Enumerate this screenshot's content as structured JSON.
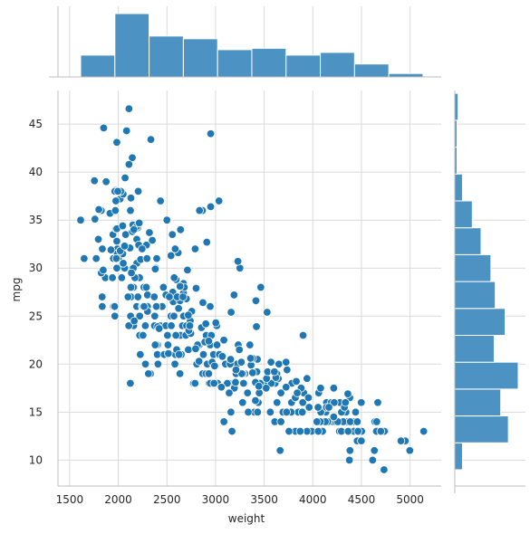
{
  "chart_data": {
    "type": "scatter",
    "variant": "jointplot with marginal histograms",
    "xlabel": "weight",
    "ylabel": "mpg",
    "xlim": [
      1380,
      5320
    ],
    "ylim": [
      7.3,
      48.5
    ],
    "x_ticks": [
      1500,
      2000,
      2500,
      3000,
      3500,
      4000,
      4500,
      5000
    ],
    "y_ticks": [
      10,
      15,
      20,
      25,
      30,
      35,
      40,
      45
    ],
    "grid": true,
    "colors": {
      "points": "#1f77b4",
      "point_edge": "#ffffff",
      "bars": "#4c92c3",
      "bar_edge": "#ffffff",
      "grid": "#d9d9d9",
      "spine": "#bcbcbc"
    },
    "x_marginal_histogram": {
      "bin_edges": [
        1613,
        1965,
        2317,
        2669,
        3021,
        3373,
        3725,
        4077,
        4429,
        4781,
        5133
      ],
      "counts": [
        32,
        93,
        60,
        56,
        40,
        42,
        32,
        36,
        19,
        5
      ]
    },
    "y_marginal_histogram": {
      "bin_edges": [
        9,
        11.8,
        14.6,
        17.4,
        20.2,
        23,
        25.8,
        28.6,
        31.4,
        34.2,
        37,
        39.8,
        42.6,
        45.4,
        48.2
      ],
      "counts": [
        7,
        49,
        42,
        58,
        36,
        46,
        37,
        33,
        24,
        16,
        7,
        2,
        2,
        3
      ]
    },
    "points": [
      [
        3504,
        18
      ],
      [
        3693,
        15
      ],
      [
        3436,
        18
      ],
      [
        3433,
        16
      ],
      [
        3449,
        17
      ],
      [
        4341,
        15
      ],
      [
        4354,
        14
      ],
      [
        4312,
        14
      ],
      [
        4425,
        14
      ],
      [
        3850,
        15
      ],
      [
        3563,
        15
      ],
      [
        3609,
        14
      ],
      [
        3761,
        15
      ],
      [
        3086,
        14
      ],
      [
        2372,
        24
      ],
      [
        2833,
        22
      ],
      [
        2774,
        18
      ],
      [
        2587,
        21
      ],
      [
        2130,
        27
      ],
      [
        1835,
        26
      ],
      [
        2672,
        25
      ],
      [
        2430,
        24
      ],
      [
        2375,
        25
      ],
      [
        2234,
        26
      ],
      [
        2648,
        21
      ],
      [
        4615,
        10
      ],
      [
        4376,
        10
      ],
      [
        4382,
        11
      ],
      [
        4732,
        9
      ],
      [
        2130,
        27
      ],
      [
        2264,
        28
      ],
      [
        2228,
        25
      ],
      [
        2634,
        19
      ],
      [
        3439,
        16
      ],
      [
        3329,
        17
      ],
      [
        3302,
        19
      ],
      [
        3288,
        18
      ],
      [
        4209,
        14
      ],
      [
        4464,
        14
      ],
      [
        4154,
        14
      ],
      [
        4096,
        14
      ],
      [
        4955,
        12
      ],
      [
        4746,
        13
      ],
      [
        5140,
        13
      ],
      [
        2962,
        18
      ],
      [
        2408,
        22
      ],
      [
        3282,
        19
      ],
      [
        3139,
        18
      ],
      [
        2220,
        23
      ],
      [
        2123,
        28
      ],
      [
        2074,
        30
      ],
      [
        2065,
        30
      ],
      [
        1773,
        31
      ],
      [
        1613,
        35
      ],
      [
        1834,
        27
      ],
      [
        1955,
        26
      ],
      [
        2278,
        24
      ],
      [
        2126,
        25
      ],
      [
        2254,
        23
      ],
      [
        2408,
        20
      ],
      [
        2226,
        21
      ],
      [
        4274,
        13
      ],
      [
        4385,
        14
      ],
      [
        4135,
        15
      ],
      [
        4129,
        14
      ],
      [
        3672,
        17
      ],
      [
        4633,
        11
      ],
      [
        4502,
        13
      ],
      [
        4456,
        12
      ],
      [
        4422,
        13
      ],
      [
        2330,
        19
      ],
      [
        3892,
        15
      ],
      [
        4098,
        13
      ],
      [
        4294,
        13
      ],
      [
        4077,
        14
      ],
      [
        2933,
        18
      ],
      [
        2511,
        22
      ],
      [
        2979,
        21
      ],
      [
        2189,
        26
      ],
      [
        2395,
        22
      ],
      [
        2288,
        28
      ],
      [
        2506,
        23
      ],
      [
        2164,
        28
      ],
      [
        2100,
        27
      ],
      [
        4100,
        13
      ],
      [
        3672,
        14
      ],
      [
        3988,
        13
      ],
      [
        4042,
        14
      ],
      [
        3777,
        15
      ],
      [
        4952,
        12
      ],
      [
        4464,
        13
      ],
      [
        4363,
        13
      ],
      [
        4237,
        14
      ],
      [
        4735,
        13
      ],
      [
        4951,
        12
      ],
      [
        3821,
        13
      ],
      [
        3121,
        18
      ],
      [
        3278,
        16
      ],
      [
        2945,
        18
      ],
      [
        3021,
        18
      ],
      [
        2904,
        23
      ],
      [
        1950,
        26
      ],
      [
        4997,
        11
      ],
      [
        4906,
        12
      ],
      [
        4654,
        13
      ],
      [
        4499,
        12
      ],
      [
        2789,
        18
      ],
      [
        2279,
        20
      ],
      [
        2401,
        21
      ],
      [
        2379,
        22
      ],
      [
        2124,
        18
      ],
      [
        2310,
        19
      ],
      [
        2472,
        21
      ],
      [
        2265,
        26
      ],
      [
        4082,
        15
      ],
      [
        4278,
        16
      ],
      [
        1867,
        29
      ],
      [
        2158,
        24
      ],
      [
        2582,
        20
      ],
      [
        2868,
        19
      ],
      [
        3399,
        15
      ],
      [
        2660,
        24
      ],
      [
        2807,
        20
      ],
      [
        3664,
        11
      ],
      [
        3102,
        20
      ],
      [
        2875,
        21
      ],
      [
        2901,
        19
      ],
      [
        3336,
        15
      ],
      [
        1950,
        31
      ],
      [
        2451,
        26
      ],
      [
        1836,
        32
      ],
      [
        2542,
        25
      ],
      [
        3781,
        16
      ],
      [
        3632,
        16
      ],
      [
        3613,
        18
      ],
      [
        4141,
        16
      ],
      [
        4699,
        13
      ],
      [
        4457,
        14
      ],
      [
        4638,
        14
      ],
      [
        4257,
        14
      ],
      [
        2219,
        29
      ],
      [
        1963,
        26
      ],
      [
        2300,
        26
      ],
      [
        1649,
        31
      ],
      [
        2003,
        32
      ],
      [
        2125,
        28
      ],
      [
        2108,
        24
      ],
      [
        2246,
        26
      ],
      [
        2489,
        24
      ],
      [
        2391,
        26
      ],
      [
        2000,
        31
      ],
      [
        3264,
        19
      ],
      [
        3459,
        18
      ],
      [
        3432,
        15
      ],
      [
        3158,
        15
      ],
      [
        4668,
        16
      ],
      [
        4440,
        15
      ],
      [
        4498,
        16
      ],
      [
        4657,
        14
      ],
      [
        3907,
        17
      ],
      [
        3897,
        16
      ],
      [
        3730,
        15
      ],
      [
        3785,
        18
      ],
      [
        3039,
        21
      ],
      [
        3221,
        20
      ],
      [
        3169,
        13
      ],
      [
        2171,
        29
      ],
      [
        2639,
        23
      ],
      [
        2914,
        20
      ],
      [
        2592,
        23
      ],
      [
        2702,
        24
      ],
      [
        2223,
        25
      ],
      [
        2545,
        24
      ],
      [
        2984,
        18
      ],
      [
        1937,
        29
      ],
      [
        3211,
        19
      ],
      [
        2694,
        23
      ],
      [
        2957,
        23
      ],
      [
        2945,
        22
      ],
      [
        2671,
        25
      ],
      [
        1795,
        33
      ],
      [
        2464,
        28
      ],
      [
        2220,
        25
      ],
      [
        2572,
        25
      ],
      [
        2255,
        26
      ],
      [
        2202,
        27
      ],
      [
        4215,
        17.5
      ],
      [
        4190,
        16
      ],
      [
        3962,
        15.5
      ],
      [
        4215,
        14.5
      ],
      [
        3233,
        22
      ],
      [
        3353,
        22
      ],
      [
        3012,
        24
      ],
      [
        3085,
        22.5
      ],
      [
        2035,
        29
      ],
      [
        2164,
        24.5
      ],
      [
        1937,
        29
      ],
      [
        1795,
        33
      ],
      [
        3651,
        20
      ],
      [
        3574,
        18
      ],
      [
        3645,
        18.5
      ],
      [
        3193,
        17.5
      ],
      [
        1825,
        29.5
      ],
      [
        1990,
        32
      ],
      [
        2155,
        28
      ],
      [
        2565,
        26.5
      ],
      [
        3150,
        20
      ],
      [
        3940,
        13
      ],
      [
        3270,
        19
      ],
      [
        2930,
        19
      ],
      [
        3820,
        16.5
      ],
      [
        4380,
        16.5
      ],
      [
        4055,
        13
      ],
      [
        3870,
        13
      ],
      [
        3755,
        13
      ],
      [
        2045,
        31.5
      ],
      [
        2155,
        30
      ],
      [
        1825,
        36
      ],
      [
        2300,
        25.5
      ],
      [
        1945,
        33.5
      ],
      [
        3880,
        17.5
      ],
      [
        4060,
        17
      ],
      [
        4140,
        15.5
      ],
      [
        4295,
        15
      ],
      [
        3520,
        17.5
      ],
      [
        3425,
        20.5
      ],
      [
        3630,
        19
      ],
      [
        3525,
        18.5
      ],
      [
        4220,
        16
      ],
      [
        4165,
        15.5
      ],
      [
        4325,
        15.5
      ],
      [
        4335,
        16
      ],
      [
        1940,
        29
      ],
      [
        2740,
        24.5
      ],
      [
        2265,
        26
      ],
      [
        2755,
        25.5
      ],
      [
        2051,
        30.5
      ],
      [
        2075,
        33.5
      ],
      [
        1985,
        30
      ],
      [
        2190,
        30.5
      ],
      [
        2815,
        22
      ],
      [
        2600,
        21.5
      ],
      [
        2720,
        21.5
      ],
      [
        1985,
        43.1
      ],
      [
        1800,
        36.1
      ],
      [
        1985,
        32.8
      ],
      [
        2070,
        39.4
      ],
      [
        1800,
        36.1
      ],
      [
        3365,
        19.9
      ],
      [
        3735,
        19.4
      ],
      [
        3570,
        20.2
      ],
      [
        3535,
        19.2
      ],
      [
        3155,
        20.5
      ],
      [
        2965,
        20.2
      ],
      [
        2720,
        25.1
      ],
      [
        3430,
        20.5
      ],
      [
        3210,
        19.4
      ],
      [
        3380,
        20.6
      ],
      [
        3070,
        20.8
      ],
      [
        3620,
        18.6
      ],
      [
        3410,
        18.1
      ],
      [
        3425,
        19.2
      ],
      [
        3445,
        17.7
      ],
      [
        3205,
        18.1
      ],
      [
        4080,
        17.5
      ],
      [
        2155,
        30
      ],
      [
        2560,
        27.5
      ],
      [
        2300,
        27.2
      ],
      [
        2230,
        30.9
      ],
      [
        2515,
        21.1
      ],
      [
        2745,
        23.2
      ],
      [
        2855,
        23.8
      ],
      [
        2405,
        23.9
      ],
      [
        2830,
        20.3
      ],
      [
        3140,
        17
      ],
      [
        2795,
        21.6
      ],
      [
        3410,
        16.2
      ],
      [
        1990,
        31.5
      ],
      [
        2135,
        29.5
      ],
      [
        3245,
        21.5
      ],
      [
        2990,
        19.8
      ],
      [
        2890,
        22.3
      ],
      [
        3265,
        20.2
      ],
      [
        3360,
        20.6
      ],
      [
        3840,
        17
      ],
      [
        3725,
        17.6
      ],
      [
        3955,
        16.5
      ],
      [
        3830,
        18.2
      ],
      [
        4360,
        16.9
      ],
      [
        4054,
        15.5
      ],
      [
        3605,
        19.2
      ],
      [
        3940,
        18.5
      ],
      [
        1925,
        31.9
      ],
      [
        1975,
        34.1
      ],
      [
        1915,
        35.7
      ],
      [
        2670,
        27.4
      ],
      [
        3530,
        25.4
      ],
      [
        3900,
        23
      ],
      [
        3190,
        27.2
      ],
      [
        3420,
        23.9
      ],
      [
        2200,
        34.2
      ],
      [
        2150,
        34.5
      ],
      [
        2020,
        31.8
      ],
      [
        2130,
        37.3
      ],
      [
        2670,
        28.4
      ],
      [
        2595,
        28.8
      ],
      [
        2700,
        26.8
      ],
      [
        2556,
        33.5
      ],
      [
        2144,
        41.5
      ],
      [
        1968,
        38.1
      ],
      [
        2120,
        32.1
      ],
      [
        2019,
        37.2
      ],
      [
        2678,
        28
      ],
      [
        2870,
        26.4
      ],
      [
        3003,
        24.3
      ],
      [
        3381,
        19.1
      ],
      [
        2188,
        34.3
      ],
      [
        2711,
        29.8
      ],
      [
        2542,
        31.3
      ],
      [
        2434,
        37
      ],
      [
        2265,
        32.2
      ],
      [
        2110,
        46.6
      ],
      [
        2800,
        27.9
      ],
      [
        2110,
        40.8
      ],
      [
        2085,
        44.3
      ],
      [
        2335,
        43.4
      ],
      [
        2950,
        36.4
      ],
      [
        3250,
        30
      ],
      [
        1850,
        44.6
      ],
      [
        2145,
        33.8
      ],
      [
        1845,
        29.8
      ],
      [
        2910,
        32.7
      ],
      [
        2420,
        23.7
      ],
      [
        2500,
        35
      ],
      [
        2290,
        32.4
      ],
      [
        2490,
        27.2
      ],
      [
        2635,
        26.6
      ],
      [
        2620,
        25.8
      ],
      [
        2725,
        23.5
      ],
      [
        2385,
        30
      ],
      [
        1755,
        39.1
      ],
      [
        1875,
        39
      ],
      [
        1760,
        35.1
      ],
      [
        2065,
        32.3
      ],
      [
        1975,
        37
      ],
      [
        2050,
        37.7
      ],
      [
        1985,
        34.1
      ],
      [
        2215,
        34.7
      ],
      [
        2045,
        34.4
      ],
      [
        2380,
        29.9
      ],
      [
        2190,
        33
      ],
      [
        2320,
        33.7
      ],
      [
        2210,
        32.4
      ],
      [
        2350,
        32.9
      ],
      [
        2615,
        31.6
      ],
      [
        2635,
        28.1
      ],
      [
        3230,
        30.7
      ],
      [
        3160,
        25.4
      ],
      [
        2900,
        24.2
      ],
      [
        2930,
        22.4
      ],
      [
        3415,
        26.6
      ],
      [
        3725,
        20.2
      ],
      [
        3060,
        17.6
      ],
      [
        3465,
        28
      ],
      [
        2605,
        27
      ],
      [
        2640,
        34
      ],
      [
        2395,
        31
      ],
      [
        2575,
        29
      ],
      [
        2525,
        27
      ],
      [
        2735,
        24
      ],
      [
        2865,
        36
      ],
      [
        3035,
        37
      ],
      [
        1980,
        31
      ],
      [
        2025,
        38
      ],
      [
        1970,
        36
      ],
      [
        2125,
        36
      ],
      [
        2125,
        36
      ],
      [
        2160,
        34
      ],
      [
        2205,
        38
      ],
      [
        2245,
        32
      ],
      [
        1965,
        38
      ],
      [
        1965,
        25
      ],
      [
        1995,
        38
      ],
      [
        2945,
        26
      ],
      [
        3015,
        22
      ],
      [
        2585,
        32
      ],
      [
        2835,
        36
      ],
      [
        2665,
        27
      ],
      [
        2370,
        27
      ],
      [
        2950,
        44
      ],
      [
        2790,
        32
      ],
      [
        2130,
        28
      ],
      [
        2295,
        31
      ],
      [
        2625,
        21
      ]
    ]
  }
}
